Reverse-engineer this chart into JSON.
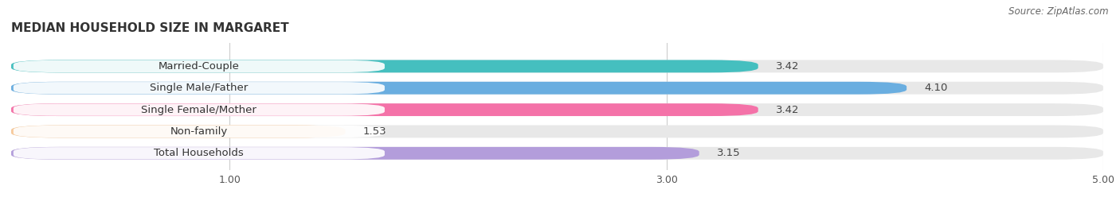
{
  "title": "MEDIAN HOUSEHOLD SIZE IN MARGARET",
  "source": "Source: ZipAtlas.com",
  "categories": [
    "Married-Couple",
    "Single Male/Father",
    "Single Female/Mother",
    "Non-family",
    "Total Households"
  ],
  "values": [
    3.42,
    4.1,
    3.42,
    1.53,
    3.15
  ],
  "bar_colors": [
    "#45bfbf",
    "#6aaee0",
    "#f472a8",
    "#f7c99a",
    "#b39ddb"
  ],
  "background_color": "#ffffff",
  "bar_bg_color": "#e8e8e8",
  "xlim_min": 0,
  "xlim_max": 5.0,
  "xticks": [
    1.0,
    3.0,
    5.0
  ],
  "label_fontsize": 9.5,
  "value_fontsize": 9.5,
  "title_fontsize": 11,
  "bar_height": 0.58,
  "bar_gap": 0.18
}
